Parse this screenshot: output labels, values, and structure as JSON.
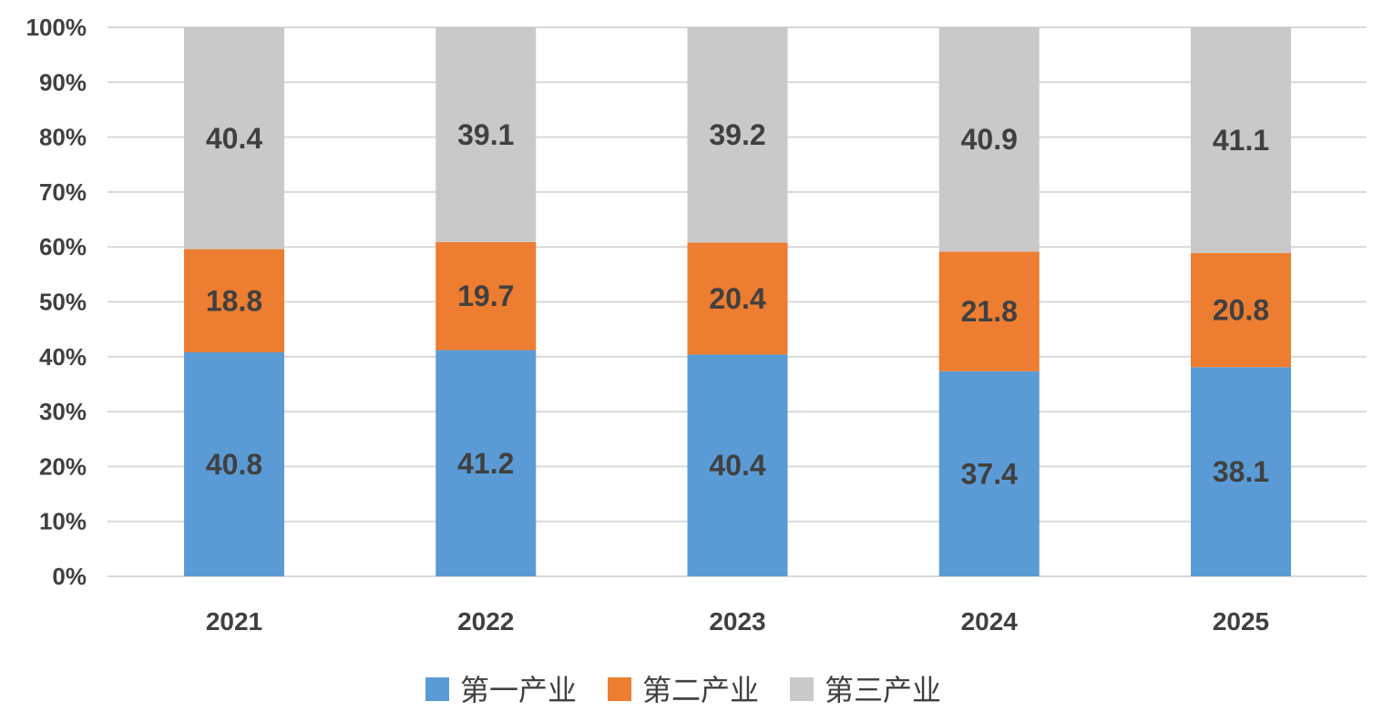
{
  "chart_data": {
    "type": "bar",
    "stacked": true,
    "percent_stacked": true,
    "categories": [
      "2021",
      "2022",
      "2023",
      "2024",
      "2025"
    ],
    "series": [
      {
        "name": "第一产业",
        "color": "#5B9BD5",
        "values": [
          40.8,
          41.2,
          40.4,
          37.4,
          38.1
        ]
      },
      {
        "name": "第二产业",
        "color": "#ED7D31",
        "values": [
          18.8,
          19.7,
          20.4,
          21.8,
          20.8
        ]
      },
      {
        "name": "第三产业",
        "color": "#C9C9C9",
        "values": [
          40.4,
          39.1,
          39.2,
          40.9,
          41.1
        ]
      }
    ],
    "y_ticks": [
      "0%",
      "10%",
      "20%",
      "30%",
      "40%",
      "50%",
      "60%",
      "70%",
      "80%",
      "90%",
      "100%"
    ],
    "ylim": [
      0,
      100
    ],
    "grid": true,
    "legend_position": "bottom",
    "data_labels": true
  }
}
